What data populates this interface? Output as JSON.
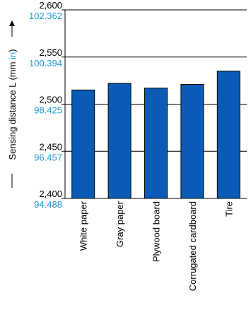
{
  "chart_data": {
    "type": "bar",
    "title": "",
    "ylabel": {
      "prefix": "Sensing distance L (mm ",
      "unit_in": "in",
      "suffix": ")"
    },
    "xlabel": "",
    "categories": [
      "White paper",
      "Gray paper",
      "Plywood board",
      "Corrugated cardboard",
      "Tire"
    ],
    "values": [
      2515,
      2522,
      2517,
      2521,
      2535
    ],
    "ylim": [
      2400,
      2600
    ],
    "y_ticks_mm": [
      "2,400",
      "2,450",
      "2,500",
      "2,550",
      "2,600"
    ],
    "y_ticks_in": [
      "94.488",
      "96.457",
      "98.425",
      "100.394",
      "102.362"
    ],
    "grid": true,
    "colors": {
      "bar_fill": "#0a5bb5",
      "bar_stroke": "#000000",
      "inch_text": "#1e9ad6",
      "axis": "#000000",
      "grid": "#000000"
    }
  }
}
